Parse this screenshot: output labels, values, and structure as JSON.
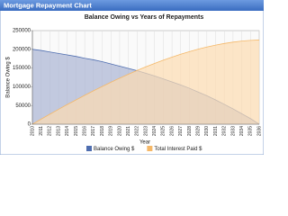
{
  "window_title": "Mortgage Repayment Chart",
  "chart_data": {
    "type": "area",
    "title": "Balance Owing vs Years of Repayments",
    "x_label": "Year",
    "y_label": "Balance Owing $",
    "categories": [
      "2010",
      "2011",
      "2012",
      "2013",
      "2014",
      "2015",
      "2016",
      "2017",
      "2018",
      "2019",
      "2020",
      "2021",
      "2022",
      "2023",
      "2024",
      "2025",
      "2026",
      "2027",
      "2028",
      "2029",
      "2030",
      "2031",
      "2032",
      "2033",
      "2034",
      "2035",
      "2036"
    ],
    "series": [
      {
        "name": "Balance Owing $",
        "color": "#4f6eb0",
        "fill": "#aab3d3",
        "values": [
          200000,
          197000,
          193000,
          189000,
          185000,
          181000,
          176000,
          172000,
          167000,
          161000,
          155000,
          149000,
          143000,
          136000,
          129000,
          121000,
          113000,
          105000,
          96000,
          86000,
          76000,
          65000,
          53000,
          41000,
          28000,
          15000,
          0
        ]
      },
      {
        "name": "Total Interest Paid $",
        "color": "#f5b868",
        "fill": "#fcdcb0",
        "values": [
          0,
          13500,
          26700,
          39800,
          52600,
          65000,
          77300,
          89200,
          100700,
          112100,
          122900,
          133400,
          143500,
          153200,
          162400,
          171000,
          179200,
          186800,
          193900,
          200400,
          206100,
          211300,
          215600,
          219200,
          222000,
          223900,
          224900
        ]
      }
    ],
    "ylim": [
      0,
      250000
    ],
    "yticks": [
      0,
      50000,
      100000,
      150000,
      200000,
      250000
    ],
    "grid": true,
    "legend": "bottom"
  }
}
